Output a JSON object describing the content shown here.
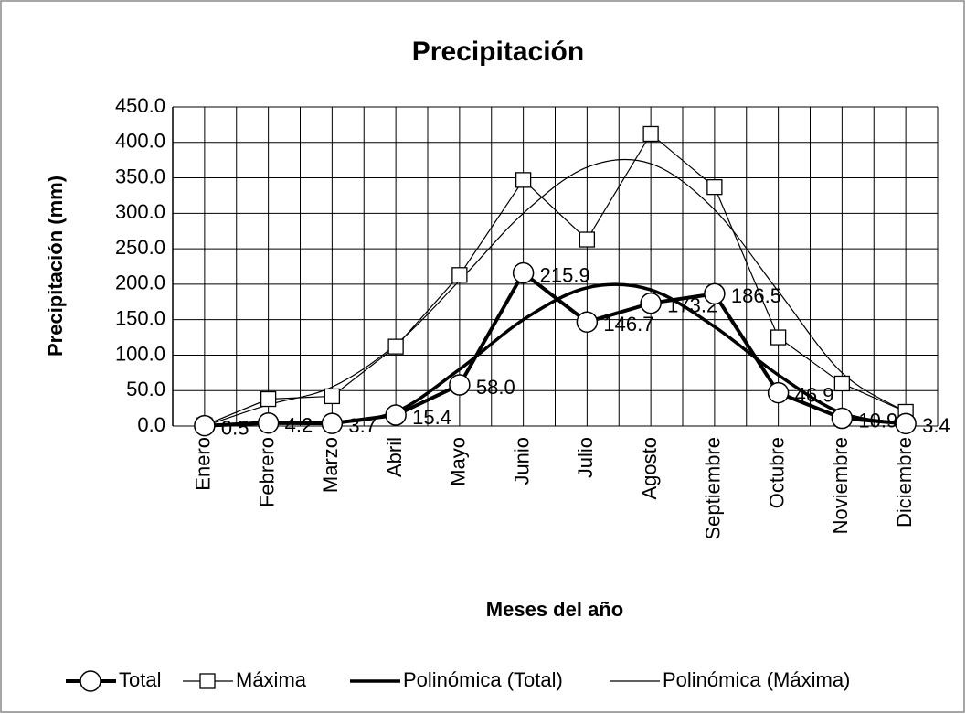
{
  "chart_data": {
    "type": "line",
    "title": "Precipitación",
    "y_label": "Precipitación (mm)",
    "x_label": "Meses del año",
    "categories": [
      "Enero",
      "Febrero",
      "Marzo",
      "Abril",
      "Mayo",
      "Junio",
      "Julio",
      "Agosto",
      "Septiembre",
      "Octubre",
      "Noviembre",
      "Diciembre"
    ],
    "series": [
      {
        "name": "Total",
        "color": "#000000",
        "line_width": 4,
        "marker": "circle",
        "smooth": false,
        "values": [
          0.5,
          4.2,
          3.7,
          15.4,
          58.0,
          215.9,
          146.7,
          173.2,
          186.5,
          46.9,
          10.9,
          3.4
        ],
        "value_labels": [
          "0.5",
          "4.2",
          "3.7",
          "15.4",
          "58.0",
          "215.9",
          "146.7",
          "173.2",
          "186.5",
          "46.9",
          "10.9",
          "3.4"
        ]
      },
      {
        "name": "Máxima",
        "color": "#000000",
        "line_width": 1.2,
        "marker": "square",
        "smooth": false,
        "values": [
          1,
          38,
          42,
          112,
          213,
          347,
          263,
          412,
          337,
          125,
          60,
          20
        ]
      },
      {
        "name": "Polinómica (Total)",
        "color": "#000000",
        "line_width": 3.5,
        "marker": "none",
        "smooth": true,
        "values": [
          0,
          5,
          5,
          20,
          80,
          150,
          195,
          192,
          140,
          72,
          18,
          3
        ]
      },
      {
        "name": "Polinómica (Máxima)",
        "color": "#000000",
        "line_width": 1.2,
        "marker": "none",
        "smooth": true,
        "values": [
          0,
          30,
          55,
          115,
          205,
          300,
          365,
          370,
          305,
          190,
          75,
          20
        ]
      }
    ],
    "ylim": [
      0,
      450
    ],
    "yticks": [
      {
        "value": 0,
        "label": "0.0"
      },
      {
        "value": 50,
        "label": "50.0"
      },
      {
        "value": 100,
        "label": "100.0"
      },
      {
        "value": 150,
        "label": "150.0"
      },
      {
        "value": 200,
        "label": "200.0"
      },
      {
        "value": 250,
        "label": "250.0"
      },
      {
        "value": 300,
        "label": "300.0"
      },
      {
        "value": 350,
        "label": "350.0"
      },
      {
        "value": 400,
        "label": "400.0"
      },
      {
        "value": 450,
        "label": "450.0"
      }
    ],
    "grid": true,
    "legend": "bottom"
  }
}
